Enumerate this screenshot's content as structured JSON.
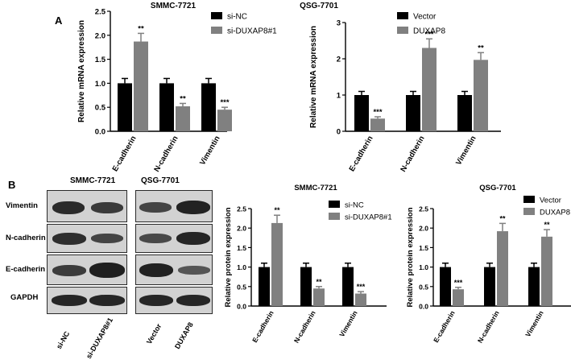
{
  "panel_labels": {
    "a": "A",
    "b": "B"
  },
  "colors": {
    "control": "#000000",
    "treatment": "#808080"
  },
  "blot": {
    "title_left": "SMMC-7721",
    "title_right": "QSG-7701",
    "rows": [
      "Vimentin",
      "N-cadherin",
      "E-cadherin",
      "GAPDH"
    ],
    "lanes": [
      "si-NC",
      "si-DUXAP8#1",
      "Vector",
      "DUXAP8"
    ]
  },
  "chart_data": [
    {
      "type": "bar",
      "title": "SMMC-7721",
      "ylabel": "Relative mRNA expression",
      "xlabel": "",
      "categories": [
        "E-cadherin",
        "N-cadherin",
        "Vimentin"
      ],
      "ylim": [
        0,
        2.5
      ],
      "yticks": [
        "0.0",
        "0.5",
        "1.0",
        "1.5",
        "2.0",
        "2.5"
      ],
      "legend_position": "top-right",
      "series": [
        {
          "name": "si-NC",
          "values": [
            1.0,
            1.0,
            1.0
          ],
          "errors": [
            0.1,
            0.1,
            0.1
          ]
        },
        {
          "name": "si-DUXAP8#1",
          "values": [
            1.87,
            0.52,
            0.45
          ],
          "errors": [
            0.17,
            0.06,
            0.05
          ]
        }
      ],
      "significance": [
        "**",
        "**",
        "***"
      ]
    },
    {
      "type": "bar",
      "title": "QSG-7701",
      "ylabel": "Relative mRNA expression",
      "xlabel": "",
      "categories": [
        "E-cadherin",
        "N-cadherin",
        "Vimentin"
      ],
      "ylim": [
        0,
        3
      ],
      "yticks": [
        "0",
        "1",
        "2",
        "3"
      ],
      "legend_position": "top-right",
      "series": [
        {
          "name": "Vector",
          "values": [
            1.0,
            1.0,
            1.0
          ],
          "errors": [
            0.1,
            0.1,
            0.1
          ]
        },
        {
          "name": "DUXAP8",
          "values": [
            0.35,
            2.3,
            1.97
          ],
          "errors": [
            0.05,
            0.25,
            0.2
          ]
        }
      ],
      "significance": [
        "***",
        "***",
        "**"
      ]
    },
    {
      "type": "bar",
      "title": "SMMC-7721",
      "ylabel": "Relative protein expression",
      "xlabel": "",
      "categories": [
        "E-cadherin",
        "N-cadherin",
        "Vimentin"
      ],
      "ylim": [
        0,
        2.5
      ],
      "yticks": [
        "0.0",
        "0.5",
        "1.0",
        "1.5",
        "2.0",
        "2.5"
      ],
      "legend_position": "top-right",
      "series": [
        {
          "name": "si-NC",
          "values": [
            1.0,
            1.0,
            1.0
          ],
          "errors": [
            0.1,
            0.1,
            0.1
          ]
        },
        {
          "name": "si-DUXAP8#1",
          "values": [
            2.13,
            0.45,
            0.32
          ],
          "errors": [
            0.2,
            0.05,
            0.05
          ]
        }
      ],
      "significance": [
        "**",
        "**",
        "***"
      ]
    },
    {
      "type": "bar",
      "title": "QSG-7701",
      "ylabel": "Relative protein expression",
      "xlabel": "",
      "categories": [
        "E-cadherin",
        "N-cadherin",
        "Vimentin"
      ],
      "ylim": [
        0,
        2.5
      ],
      "yticks": [
        "0.0",
        "0.5",
        "1.0",
        "1.5",
        "2.0",
        "2.5"
      ],
      "legend_position": "top-right",
      "series": [
        {
          "name": "Vector",
          "values": [
            1.0,
            1.0,
            1.0
          ],
          "errors": [
            0.1,
            0.1,
            0.1
          ]
        },
        {
          "name": "DUXAP8",
          "values": [
            0.43,
            1.92,
            1.78
          ],
          "errors": [
            0.05,
            0.2,
            0.18
          ]
        }
      ],
      "significance": [
        "***",
        "**",
        "**"
      ]
    }
  ]
}
